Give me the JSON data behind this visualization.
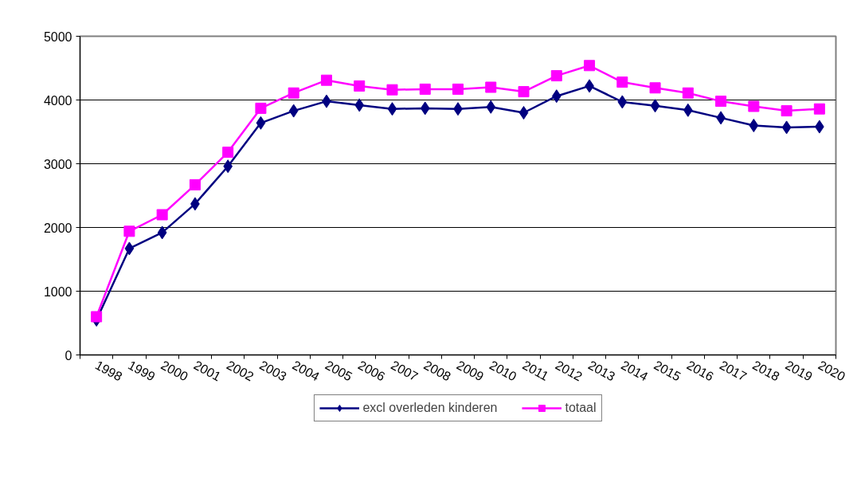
{
  "chart_data": {
    "type": "line",
    "categories": [
      "1998",
      "1999",
      "2000",
      "2001",
      "2002",
      "2003",
      "2004",
      "2005",
      "2006",
      "2007",
      "2008",
      "2009",
      "2010",
      "2011",
      "2012",
      "2013",
      "2014",
      "2015",
      "2016",
      "2017",
      "2018",
      "2019",
      "2020"
    ],
    "series": [
      {
        "name": "excl overleden kinderen",
        "color": "#000080",
        "marker": "diamond",
        "values": [
          550,
          1670,
          1920,
          2370,
          2960,
          3640,
          3830,
          3980,
          3920,
          3860,
          3870,
          3860,
          3890,
          3800,
          4060,
          4220,
          3970,
          3910,
          3840,
          3720,
          3600,
          3570,
          3580
        ]
      },
      {
        "name": "totaal",
        "color": "#ff00ff",
        "marker": "square",
        "values": [
          600,
          1940,
          2200,
          2670,
          3180,
          3870,
          4110,
          4310,
          4220,
          4160,
          4170,
          4170,
          4200,
          4130,
          4380,
          4540,
          4280,
          4190,
          4110,
          3980,
          3900,
          3830,
          3860
        ]
      }
    ],
    "ylim": [
      0,
      5000
    ],
    "yticks": [
      0,
      1000,
      2000,
      3000,
      4000,
      5000
    ],
    "grid": "y",
    "legend": "bottom",
    "line_style": "solid"
  }
}
